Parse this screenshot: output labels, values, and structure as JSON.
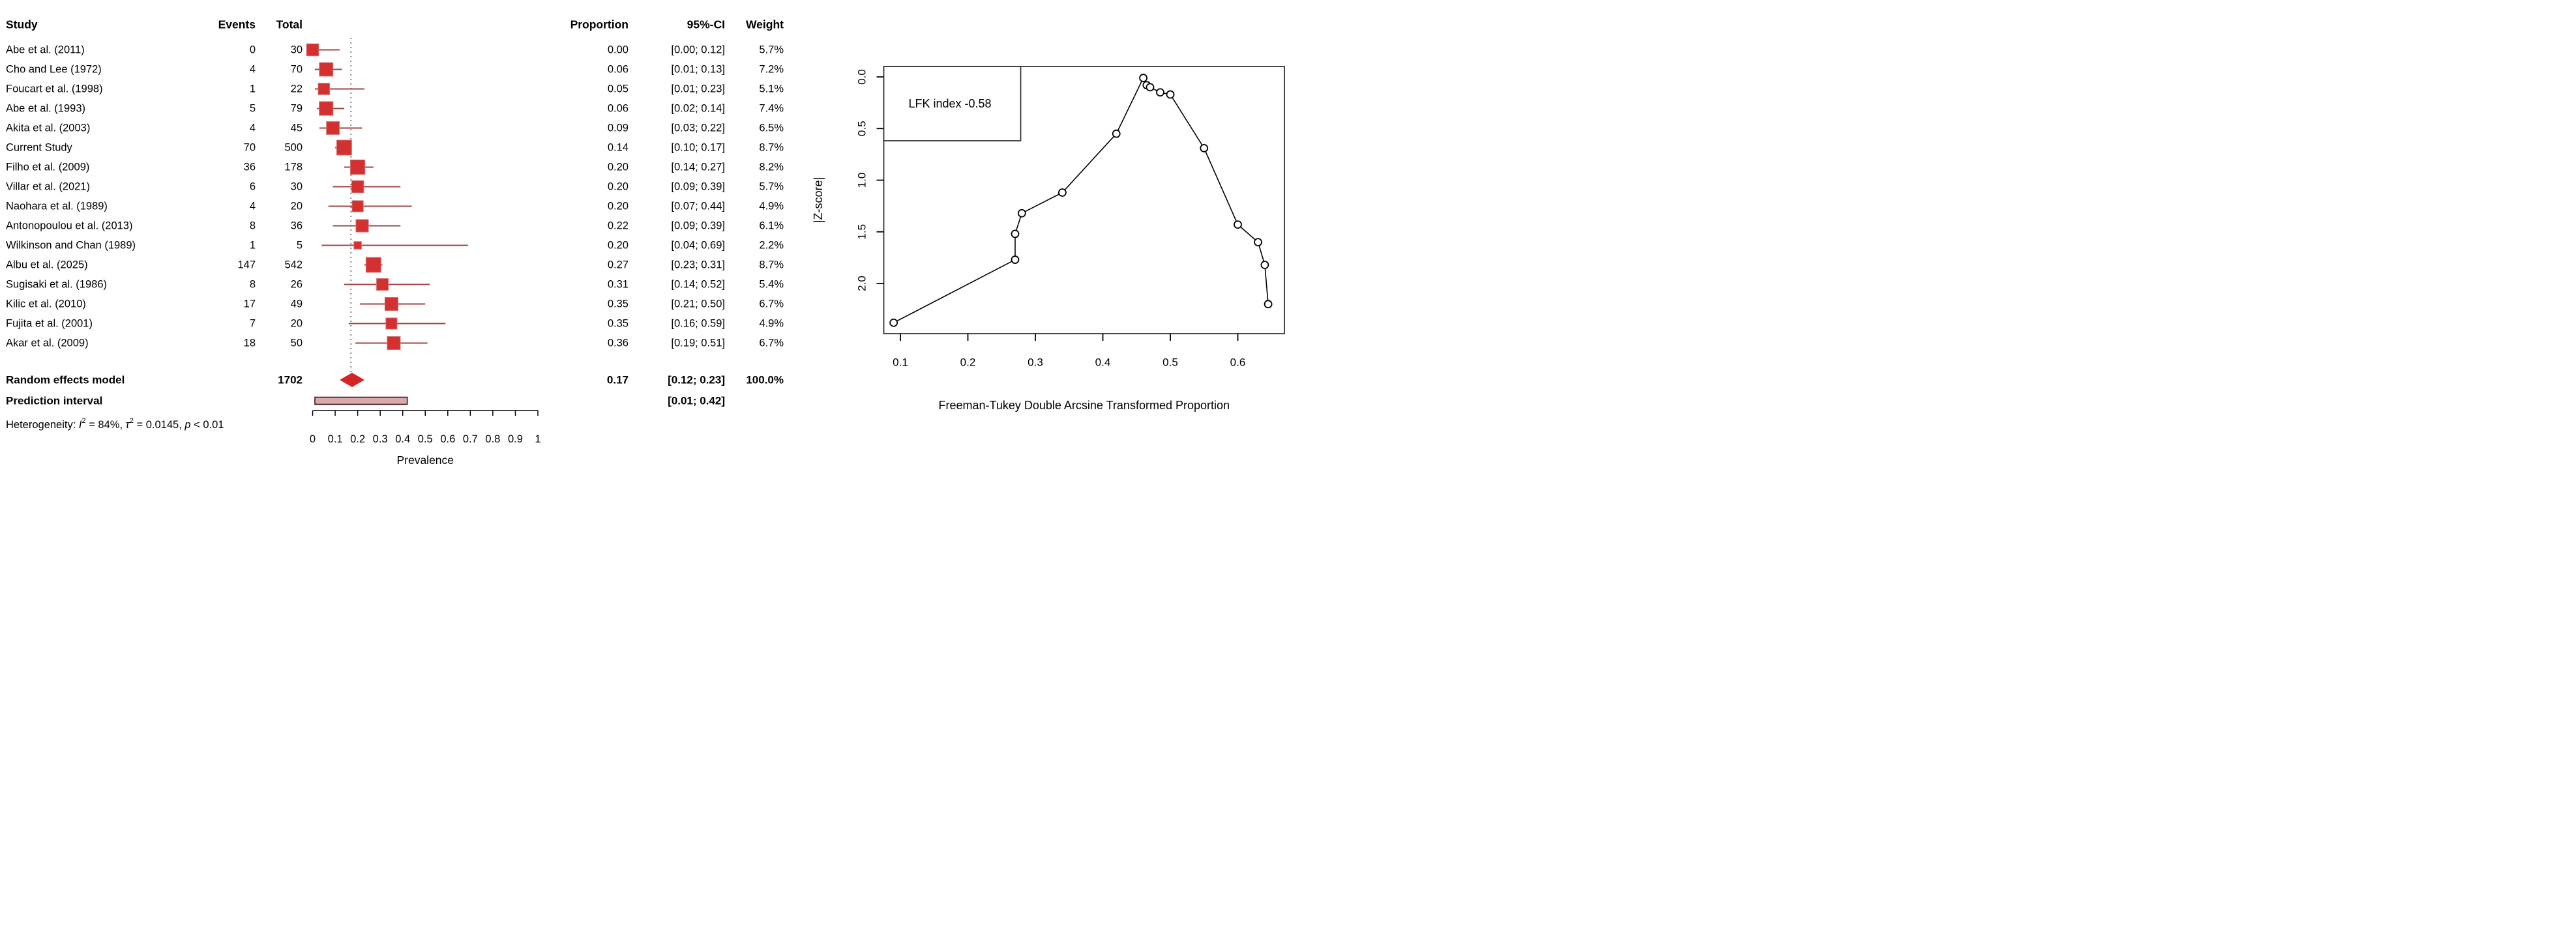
{
  "figure": {
    "kind": "meta-analysis forest plot with Doi plot",
    "colors": {
      "square_fill": "#d43030",
      "square_border": "#cf7171",
      "ci_line": "#a04545",
      "diamond": "#d42424",
      "prediction_fill": "#d9a8ac",
      "prediction_border": "#30090b",
      "dotted_line": "#555555",
      "axis": "#000000",
      "doi_stroke": "#000000",
      "doi_box": "#333333"
    }
  },
  "chart_data": [
    {
      "type": "forest",
      "columns": {
        "study": "Study",
        "events": "Events",
        "total": "Total",
        "proportion": "Proportion",
        "ci": "95%-CI",
        "weight": "Weight"
      },
      "studies": [
        {
          "study": "Abe et al. (2011)",
          "events": 0,
          "total": 30,
          "proportion": 0.0,
          "ci": [
            0.0,
            0.12
          ],
          "weight": 5.7
        },
        {
          "study": "Cho and Lee (1972)",
          "events": 4,
          "total": 70,
          "proportion": 0.06,
          "ci": [
            0.01,
            0.13
          ],
          "weight": 7.2
        },
        {
          "study": "Foucart et al. (1998)",
          "events": 1,
          "total": 22,
          "proportion": 0.05,
          "ci": [
            0.01,
            0.23
          ],
          "weight": 5.1
        },
        {
          "study": "Abe et al. (1993)",
          "events": 5,
          "total": 79,
          "proportion": 0.06,
          "ci": [
            0.02,
            0.14
          ],
          "weight": 7.4
        },
        {
          "study": "Akita et al. (2003)",
          "events": 4,
          "total": 45,
          "proportion": 0.09,
          "ci": [
            0.03,
            0.22
          ],
          "weight": 6.5
        },
        {
          "study": "Current Study",
          "events": 70,
          "total": 500,
          "proportion": 0.14,
          "ci": [
            0.1,
            0.17
          ],
          "weight": 8.7
        },
        {
          "study": "Filho et al. (2009)",
          "events": 36,
          "total": 178,
          "proportion": 0.2,
          "ci": [
            0.14,
            0.27
          ],
          "weight": 8.2
        },
        {
          "study": "Villar et al. (2021)",
          "events": 6,
          "total": 30,
          "proportion": 0.2,
          "ci": [
            0.09,
            0.39
          ],
          "weight": 5.7
        },
        {
          "study": "Naohara et al. (1989)",
          "events": 4,
          "total": 20,
          "proportion": 0.2,
          "ci": [
            0.07,
            0.44
          ],
          "weight": 4.9
        },
        {
          "study": "Antonopoulou et al. (2013)",
          "events": 8,
          "total": 36,
          "proportion": 0.22,
          "ci": [
            0.09,
            0.39
          ],
          "weight": 6.1
        },
        {
          "study": "Wilkinson and Chan (1989)",
          "events": 1,
          "total": 5,
          "proportion": 0.2,
          "ci": [
            0.04,
            0.69
          ],
          "weight": 2.2
        },
        {
          "study": "Albu et al. (2025)",
          "events": 147,
          "total": 542,
          "proportion": 0.27,
          "ci": [
            0.23,
            0.31
          ],
          "weight": 8.7
        },
        {
          "study": "Sugisaki et al. (1986)",
          "events": 8,
          "total": 26,
          "proportion": 0.31,
          "ci": [
            0.14,
            0.52
          ],
          "weight": 5.4
        },
        {
          "study": "Kilic et al. (2010)",
          "events": 17,
          "total": 49,
          "proportion": 0.35,
          "ci": [
            0.21,
            0.5
          ],
          "weight": 6.7
        },
        {
          "study": "Fujita et al. (2001)",
          "events": 7,
          "total": 20,
          "proportion": 0.35,
          "ci": [
            0.16,
            0.59
          ],
          "weight": 4.9
        },
        {
          "study": "Akar et al. (2009)",
          "events": 18,
          "total": 50,
          "proportion": 0.36,
          "ci": [
            0.19,
            0.51
          ],
          "weight": 6.7
        }
      ],
      "pooled": {
        "label": "Random effects model",
        "total": 1702,
        "proportion": 0.17,
        "ci": [
          0.12,
          0.23
        ],
        "weight_text": "100.0%"
      },
      "prediction": {
        "label": "Prediction interval",
        "ci": [
          0.01,
          0.42
        ]
      },
      "heterogeneity_parts": [
        {
          "t": "Heterogeneity: "
        },
        {
          "t": "I",
          "i": 1
        },
        {
          "t": "2",
          "sup": 1
        },
        {
          "t": " = 84%, "
        },
        {
          "t": "τ",
          "i": 1
        },
        {
          "t": "2",
          "sup": 1
        },
        {
          "t": " = 0.0145, "
        },
        {
          "t": "p",
          "i": 1
        },
        {
          "t": " < 0.01"
        }
      ],
      "pooled_line_value": 0.17,
      "xlabel": "Prevalence",
      "x_ticks": [
        0,
        0.1,
        0.2,
        0.3,
        0.4,
        0.5,
        0.6,
        0.7,
        0.8,
        0.9,
        1
      ],
      "x_tick_labels": [
        "0",
        "0.1",
        "0.2",
        "0.3",
        "0.4",
        "0.5",
        "0.6",
        "0.7",
        "0.8",
        "0.9",
        "1"
      ],
      "xlim": [
        0,
        1
      ]
    },
    {
      "type": "scatter",
      "name": "Doi plot",
      "legend": "LFK index -0.58",
      "ylabel": "|Z-score|",
      "xlabel": "Freeman-Tukey Double Arcsine Transformed Proportion",
      "x_ticks": [
        0.1,
        0.2,
        0.3,
        0.4,
        0.5,
        0.6
      ],
      "y_ticks": [
        0.0,
        0.5,
        1.0,
        1.5,
        2.0
      ],
      "xlim": [
        0.075,
        0.667
      ],
      "ylim_inverted": [
        -0.1,
        2.49
      ],
      "grid": false,
      "legend_position": "top-left",
      "points": [
        {
          "x": 0.09,
          "z": 2.38
        },
        {
          "x": 0.27,
          "z": 1.77
        },
        {
          "x": 0.27,
          "z": 1.52
        },
        {
          "x": 0.28,
          "z": 1.32
        },
        {
          "x": 0.34,
          "z": 1.12
        },
        {
          "x": 0.42,
          "z": 0.55
        },
        {
          "x": 0.46,
          "z": 0.01
        },
        {
          "x": 0.465,
          "z": 0.08
        },
        {
          "x": 0.47,
          "z": 0.1
        },
        {
          "x": 0.485,
          "z": 0.15
        },
        {
          "x": 0.5,
          "z": 0.17
        },
        {
          "x": 0.55,
          "z": 0.69
        },
        {
          "x": 0.6,
          "z": 1.43
        },
        {
          "x": 0.63,
          "z": 1.6
        },
        {
          "x": 0.64,
          "z": 1.82
        },
        {
          "x": 0.645,
          "z": 2.2
        }
      ]
    }
  ]
}
